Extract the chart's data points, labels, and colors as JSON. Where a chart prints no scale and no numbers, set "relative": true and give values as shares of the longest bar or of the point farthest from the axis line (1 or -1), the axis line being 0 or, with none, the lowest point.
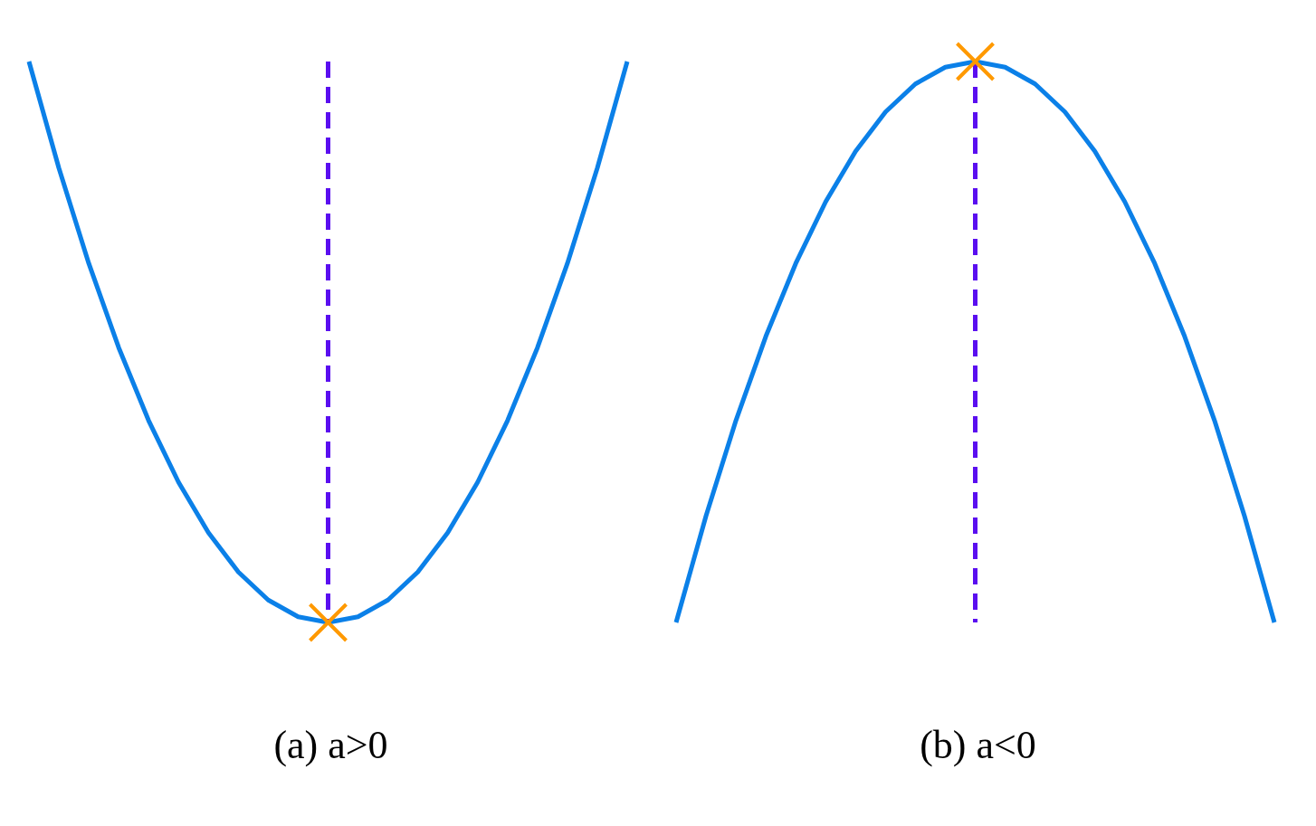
{
  "chart_data": [
    {
      "type": "line",
      "title": "(a) a>0",
      "relative": true,
      "tick_labels": false,
      "categories": [
        null,
        null,
        null,
        null,
        null,
        null,
        null,
        null,
        null,
        null,
        null,
        null,
        null,
        null,
        null,
        null,
        null,
        null,
        null,
        null,
        null
      ],
      "series": [
        {
          "color": "#0b80e8",
          "values": [
            1,
            0.81,
            0.64,
            0.49,
            0.36,
            0.25,
            0.16,
            0.09,
            0.04,
            0.01,
            0,
            0.01,
            0.04,
            0.09,
            0.16,
            0.25,
            0.36,
            0.49,
            0.64,
            0.81,
            1
          ]
        }
      ]
    },
    {
      "type": "line",
      "title": "(b) a<0",
      "relative": true,
      "tick_labels": false,
      "categories": [
        null,
        null,
        null,
        null,
        null,
        null,
        null,
        null,
        null,
        null,
        null,
        null,
        null,
        null,
        null,
        null,
        null,
        null,
        null,
        null,
        null
      ],
      "series": [
        {
          "color": "#0b80e8",
          "values": [
            0,
            0.19,
            0.36,
            0.51,
            0.64,
            0.75,
            0.84,
            0.91,
            0.96,
            0.99,
            1,
            0.99,
            0.96,
            0.91,
            0.84,
            0.75,
            0.64,
            0.51,
            0.36,
            0.19,
            0
          ]
        }
      ]
    }
  ]
}
